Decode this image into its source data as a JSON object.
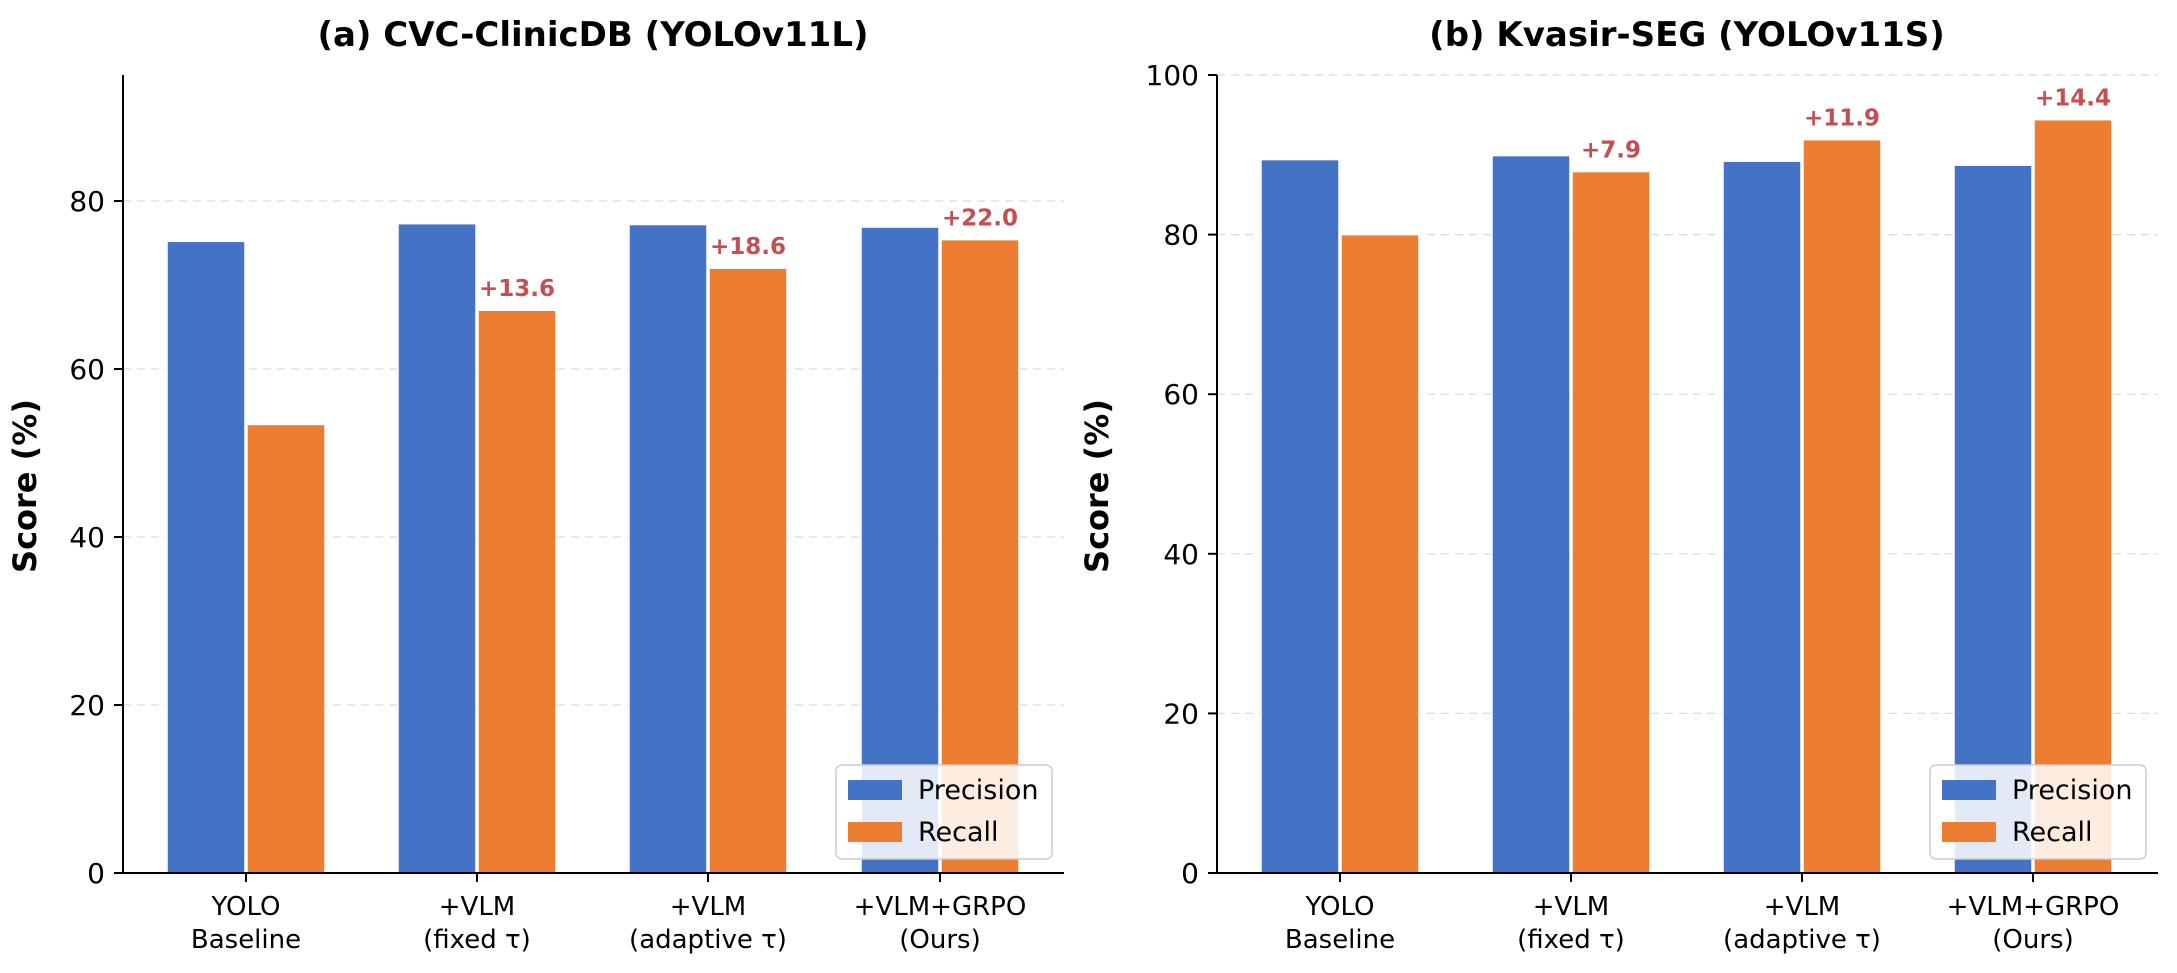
{
  "chart_data": [
    {
      "type": "bar",
      "title": "(a) CVC-ClinicDB (YOLOv11L)",
      "ylabel": "Score (%)",
      "xlabel": "",
      "ylim": [
        0,
        95
      ],
      "yticks": [
        "0",
        "20",
        "40",
        "60",
        "80"
      ],
      "categories": [
        [
          "YOLO",
          "Baseline"
        ],
        [
          "+VLM",
          "(fixed τ)"
        ],
        [
          "+VLM",
          "(adaptive τ)"
        ],
        [
          "+VLM+GRPO",
          "(Ours)"
        ]
      ],
      "series": [
        {
          "name": "Precision",
          "color": "#4472c4",
          "values": [
            75.2,
            77.3,
            77.2,
            76.9
          ]
        },
        {
          "name": "Recall",
          "color": "#ed7d31",
          "values": [
            53.4,
            67.0,
            72.0,
            75.4
          ]
        }
      ],
      "annotations": [
        "",
        "+13.6",
        "+18.6",
        "+22.0"
      ],
      "legend_position": "lower-right",
      "grid": "y-dashed"
    },
    {
      "type": "bar",
      "title": "(b) Kvasir-SEG (YOLOv11S)",
      "ylabel": "Score (%)",
      "xlabel": "",
      "ylim": [
        0,
        100
      ],
      "yticks": [
        "0",
        "20",
        "40",
        "60",
        "80",
        "100"
      ],
      "categories": [
        [
          "YOLO",
          "Baseline"
        ],
        [
          "+VLM",
          "(fixed τ)"
        ],
        [
          "+VLM",
          "(adaptive τ)"
        ],
        [
          "+VLM+GRPO",
          "(Ours)"
        ]
      ],
      "series": [
        {
          "name": "Precision",
          "color": "#4472c4",
          "values": [
            89.4,
            89.9,
            89.2,
            88.7
          ]
        },
        {
          "name": "Recall",
          "color": "#ed7d31",
          "values": [
            80.0,
            87.9,
            91.9,
            94.4
          ]
        }
      ],
      "annotations": [
        "",
        "+7.9",
        "+11.9",
        "+14.4"
      ],
      "legend_position": "lower-right",
      "grid": "y-dashed"
    }
  ]
}
